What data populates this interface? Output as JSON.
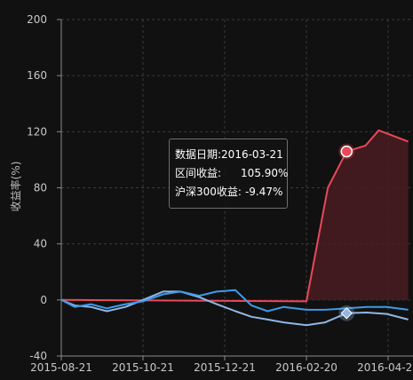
{
  "chart_data": {
    "type": "line",
    "ylabel": "收益率(%)",
    "ylim": [
      -40,
      200
    ],
    "yticks": [
      -40,
      0,
      40,
      80,
      120,
      160,
      200
    ],
    "x_ticks": [
      "2015-08-21",
      "2015-10-21",
      "2015-12-21",
      "2016-02-20",
      "2016-04-21"
    ],
    "grid": true,
    "colors": {
      "background": "#111111",
      "grid": "#3a3a3a",
      "interval_return": "#e8495a",
      "interval_area": "#4a1c22",
      "hs300": "#8fb7e6",
      "third": "#3d9be9"
    },
    "series": [
      {
        "name": "区间收益",
        "color": "#e8495a",
        "fill": true,
        "x": [
          "2015-08-21",
          "2016-02-20",
          "2016-03-07",
          "2016-03-21",
          "2016-04-04",
          "2016-04-14",
          "2016-05-06"
        ],
        "values": [
          0,
          -1.0,
          80,
          105.9,
          110,
          121,
          113
        ]
      },
      {
        "name": "沪深300收益",
        "color": "#8fb7e6",
        "fill": false,
        "x": [
          "2015-08-21",
          "2015-08-31",
          "2015-09-12",
          "2015-09-24",
          "2015-10-08",
          "2015-10-21",
          "2015-11-05",
          "2015-11-18",
          "2015-12-02",
          "2015-12-15",
          "2015-12-29",
          "2016-01-10",
          "2016-01-22",
          "2016-02-03",
          "2016-02-20",
          "2016-03-05",
          "2016-03-21",
          "2016-04-05",
          "2016-04-20",
          "2016-05-06"
        ],
        "values": [
          0,
          -4,
          -5,
          -8,
          -5,
          0,
          6,
          6,
          2,
          -3,
          -8,
          -12,
          -14,
          -16,
          -18,
          -16,
          -9.47,
          -9,
          -10,
          -14
        ]
      },
      {
        "name": "",
        "color": "#3d9be9",
        "fill": false,
        "x": [
          "2015-08-21",
          "2015-08-31",
          "2015-09-12",
          "2015-09-24",
          "2015-10-08",
          "2015-10-21",
          "2015-11-05",
          "2015-11-18",
          "2015-12-02",
          "2015-12-15",
          "2015-12-29",
          "2016-01-10",
          "2016-01-22",
          "2016-02-03",
          "2016-02-20",
          "2016-03-05",
          "2016-03-21",
          "2016-04-05",
          "2016-04-20",
          "2016-05-06"
        ],
        "values": [
          0,
          -5,
          -3,
          -6,
          -3,
          -1,
          4,
          6,
          3,
          6,
          7,
          -4,
          -8,
          -5,
          -7,
          -7,
          -6,
          -5,
          -5,
          -7
        ]
      }
    ],
    "tooltip": {
      "date_label": "数据日期:",
      "date": "2016-03-21",
      "lines": [
        {
          "label": "区间收益:",
          "value": "105.90%"
        },
        {
          "label": "沪深300收益:",
          "value": "-9.47%"
        }
      ]
    },
    "markers": [
      {
        "series": "区间收益",
        "x": "2016-03-21",
        "y": 105.9,
        "shape": "circle"
      },
      {
        "series": "沪深300收益",
        "x": "2016-03-21",
        "y": -9.47,
        "shape": "diamond"
      }
    ]
  }
}
